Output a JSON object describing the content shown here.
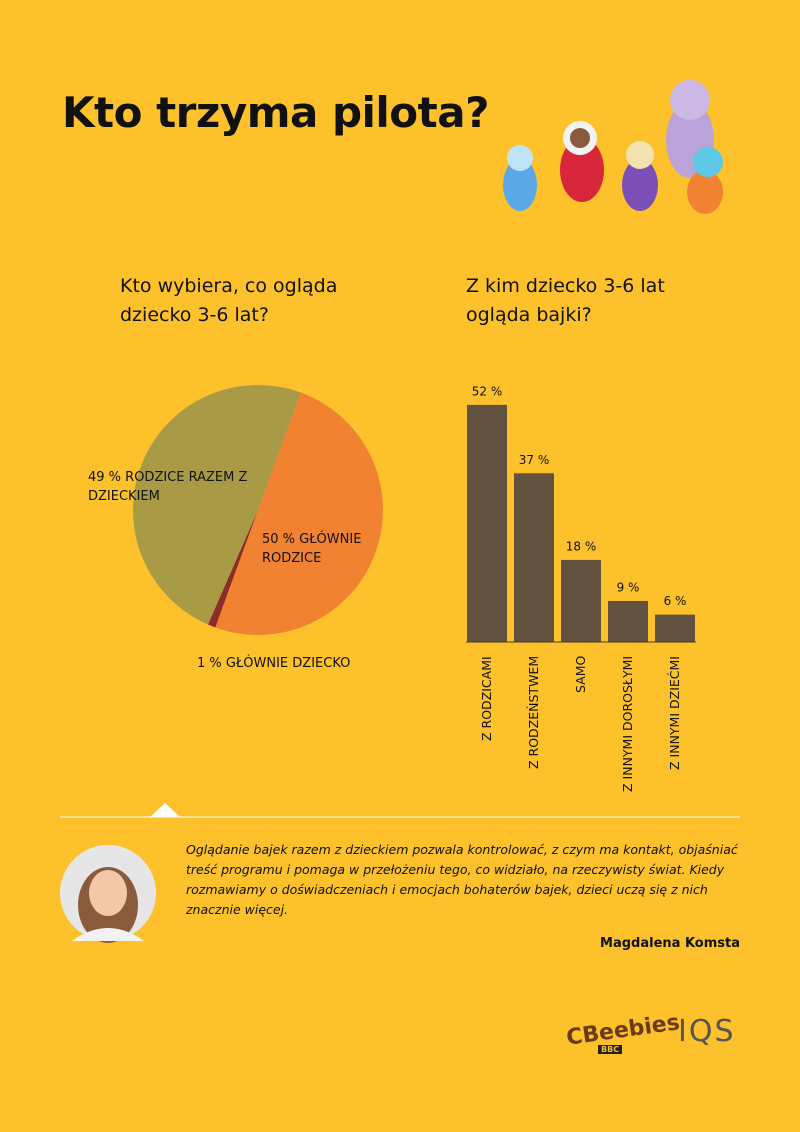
{
  "title": "Kto trzyma pilota?",
  "chart_data": [
    {
      "type": "pie",
      "title": "Kto wybiera, co ogląda dziecko 3-6 lat?",
      "categories": [
        "RODZICE RAZEM Z DZIECKIEM",
        "GŁÓWNIE RODZICE",
        "GŁÓWNIE DZIECKO"
      ],
      "values": [
        49,
        50,
        1
      ],
      "value_labels": [
        "49 %",
        "50 %",
        "1 %"
      ],
      "colors": [
        "#a99a45",
        "#f08232",
        "#8c2b2b"
      ]
    },
    {
      "type": "bar",
      "title": "Z kim dziecko 3-6 lat ogląda bajki?",
      "categories": [
        "Z RODZICAMI",
        "Z RODZEŃSTWEM",
        "SAMO",
        "Z INNYMI DOROSŁYMI",
        "Z INNYMI DZIEĆMI"
      ],
      "values": [
        52,
        37,
        18,
        9,
        6
      ],
      "value_labels": [
        "52 %",
        "37 %",
        "18 %",
        "9 %",
        "6 %"
      ],
      "color": "#63513f"
    }
  ],
  "quote": {
    "text": "Oglądanie bajek razem z dzieckiem pozwala kontrolować, z czym ma kontakt, objaśniać treść programu i pomaga w przełożeniu tego, co widziało, na rzeczywisty świat. Kiedy rozmawiamy o doświadczeniach i emocjach bohaterów bajek, dzieci uczą się z nich znacznie więcej.",
    "author": "Magdalena Komsta"
  },
  "logos": {
    "cbeebies": "CBeebies",
    "bbc": "BBC",
    "iqs": "IQS"
  }
}
